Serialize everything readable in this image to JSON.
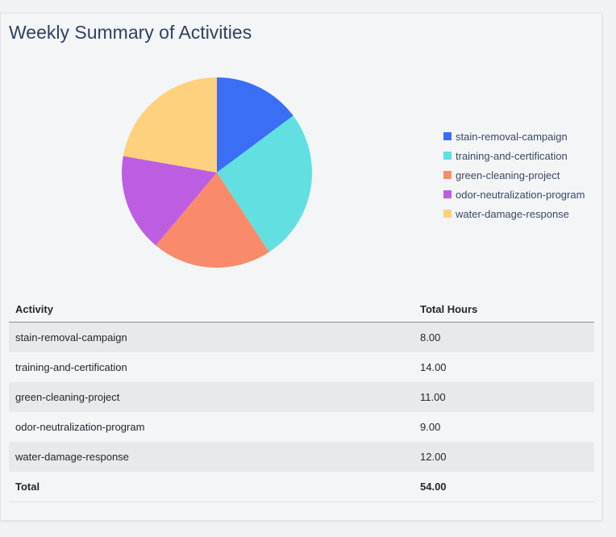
{
  "title": "Weekly Summary of Activities",
  "chart_data": {
    "type": "pie",
    "categories": [
      "stain-removal-campaign",
      "training-and-certification",
      "green-cleaning-project",
      "odor-neutralization-program",
      "water-damage-response"
    ],
    "values": [
      8,
      14,
      11,
      9,
      12
    ],
    "colors": [
      "#3a6ff5",
      "#62dfe0",
      "#f98b6a",
      "#bd5ee2",
      "#fdd17d"
    ],
    "legend_position": "right"
  },
  "table": {
    "headers": [
      "Activity",
      "Total Hours"
    ],
    "rows": [
      [
        "stain-removal-campaign",
        "8.00"
      ],
      [
        "training-and-certification",
        "14.00"
      ],
      [
        "green-cleaning-project",
        "11.00"
      ],
      [
        "odor-neutralization-program",
        "9.00"
      ],
      [
        "water-damage-response",
        "12.00"
      ]
    ],
    "total": [
      "Total",
      "54.00"
    ]
  }
}
